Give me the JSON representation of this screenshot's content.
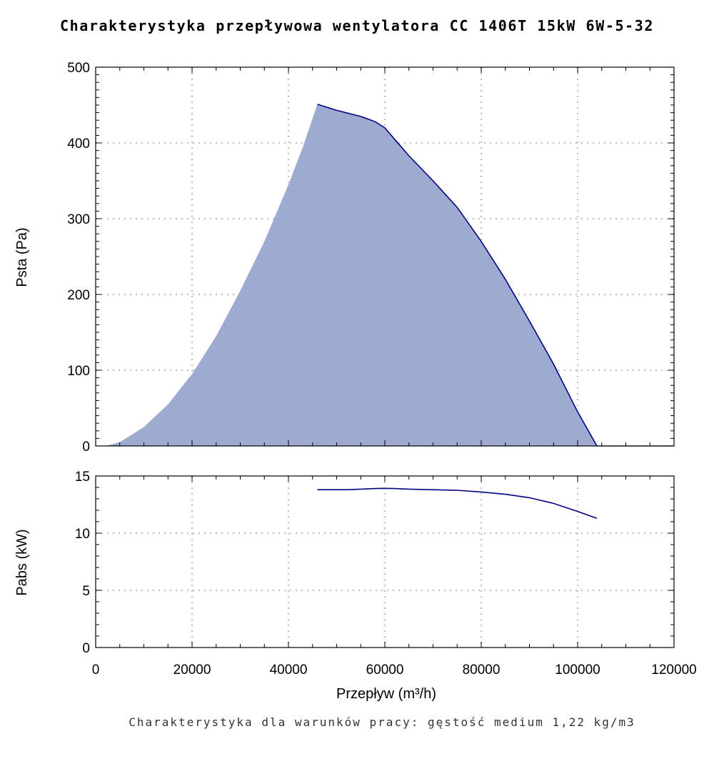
{
  "title": "Charakterystyka przepływowa wentylatora CC 1406T 15kW 6W-5-32",
  "caption": "Charakterystyka dla warunków pracy: gęstość medium 1,22 kg/m3",
  "colors": {
    "fill": "#9eaacf",
    "line": "#000080",
    "grid": "#c0c0c0",
    "axis": "#000000"
  },
  "chart_data": [
    {
      "type": "area",
      "title": "Charakterystyka przepływowa wentylatora CC 1406T 15kW 6W-5-32",
      "ylabel": "Psta (Pa)",
      "xlabel": "",
      "xlim": [
        0,
        120000
      ],
      "ylim": [
        0,
        500
      ],
      "x_ticks": [
        "0",
        "20000",
        "40000",
        "60000",
        "80000",
        "100000",
        "120000"
      ],
      "y_ticks": [
        "0",
        "100",
        "200",
        "300",
        "400",
        "500"
      ],
      "grid": true,
      "series": [
        {
          "name": "Psta",
          "x": [
            0,
            2000,
            5000,
            10000,
            15000,
            20000,
            25000,
            30000,
            35000,
            40000,
            43000,
            46000,
            50000,
            55000,
            58000,
            60000,
            62000,
            65000,
            70000,
            75000,
            80000,
            85000,
            90000,
            95000,
            100000,
            104000
          ],
          "y": [
            0,
            0,
            5,
            25,
            55,
            95,
            145,
            205,
            270,
            345,
            395,
            451,
            443,
            435,
            428,
            420,
            405,
            383,
            350,
            315,
            270,
            220,
            165,
            108,
            45,
            0
          ]
        }
      ]
    },
    {
      "type": "line",
      "ylabel": "Pabs (kW)",
      "xlabel": "Przepływ (m³/h)",
      "xlim": [
        0,
        120000
      ],
      "ylim": [
        0,
        15
      ],
      "x_ticks": [
        "0",
        "20000",
        "40000",
        "60000",
        "80000",
        "100000",
        "120000"
      ],
      "y_ticks": [
        "0",
        "5",
        "10",
        "15"
      ],
      "grid": true,
      "series": [
        {
          "name": "Pabs",
          "x": [
            46000,
            50000,
            52000,
            55000,
            58000,
            60000,
            62000,
            65000,
            70000,
            75000,
            80000,
            85000,
            90000,
            95000,
            100000,
            104000
          ],
          "y": [
            13.8,
            13.8,
            13.8,
            13.85,
            13.9,
            13.92,
            13.9,
            13.85,
            13.8,
            13.75,
            13.6,
            13.4,
            13.1,
            12.6,
            11.9,
            11.3
          ]
        }
      ]
    }
  ]
}
